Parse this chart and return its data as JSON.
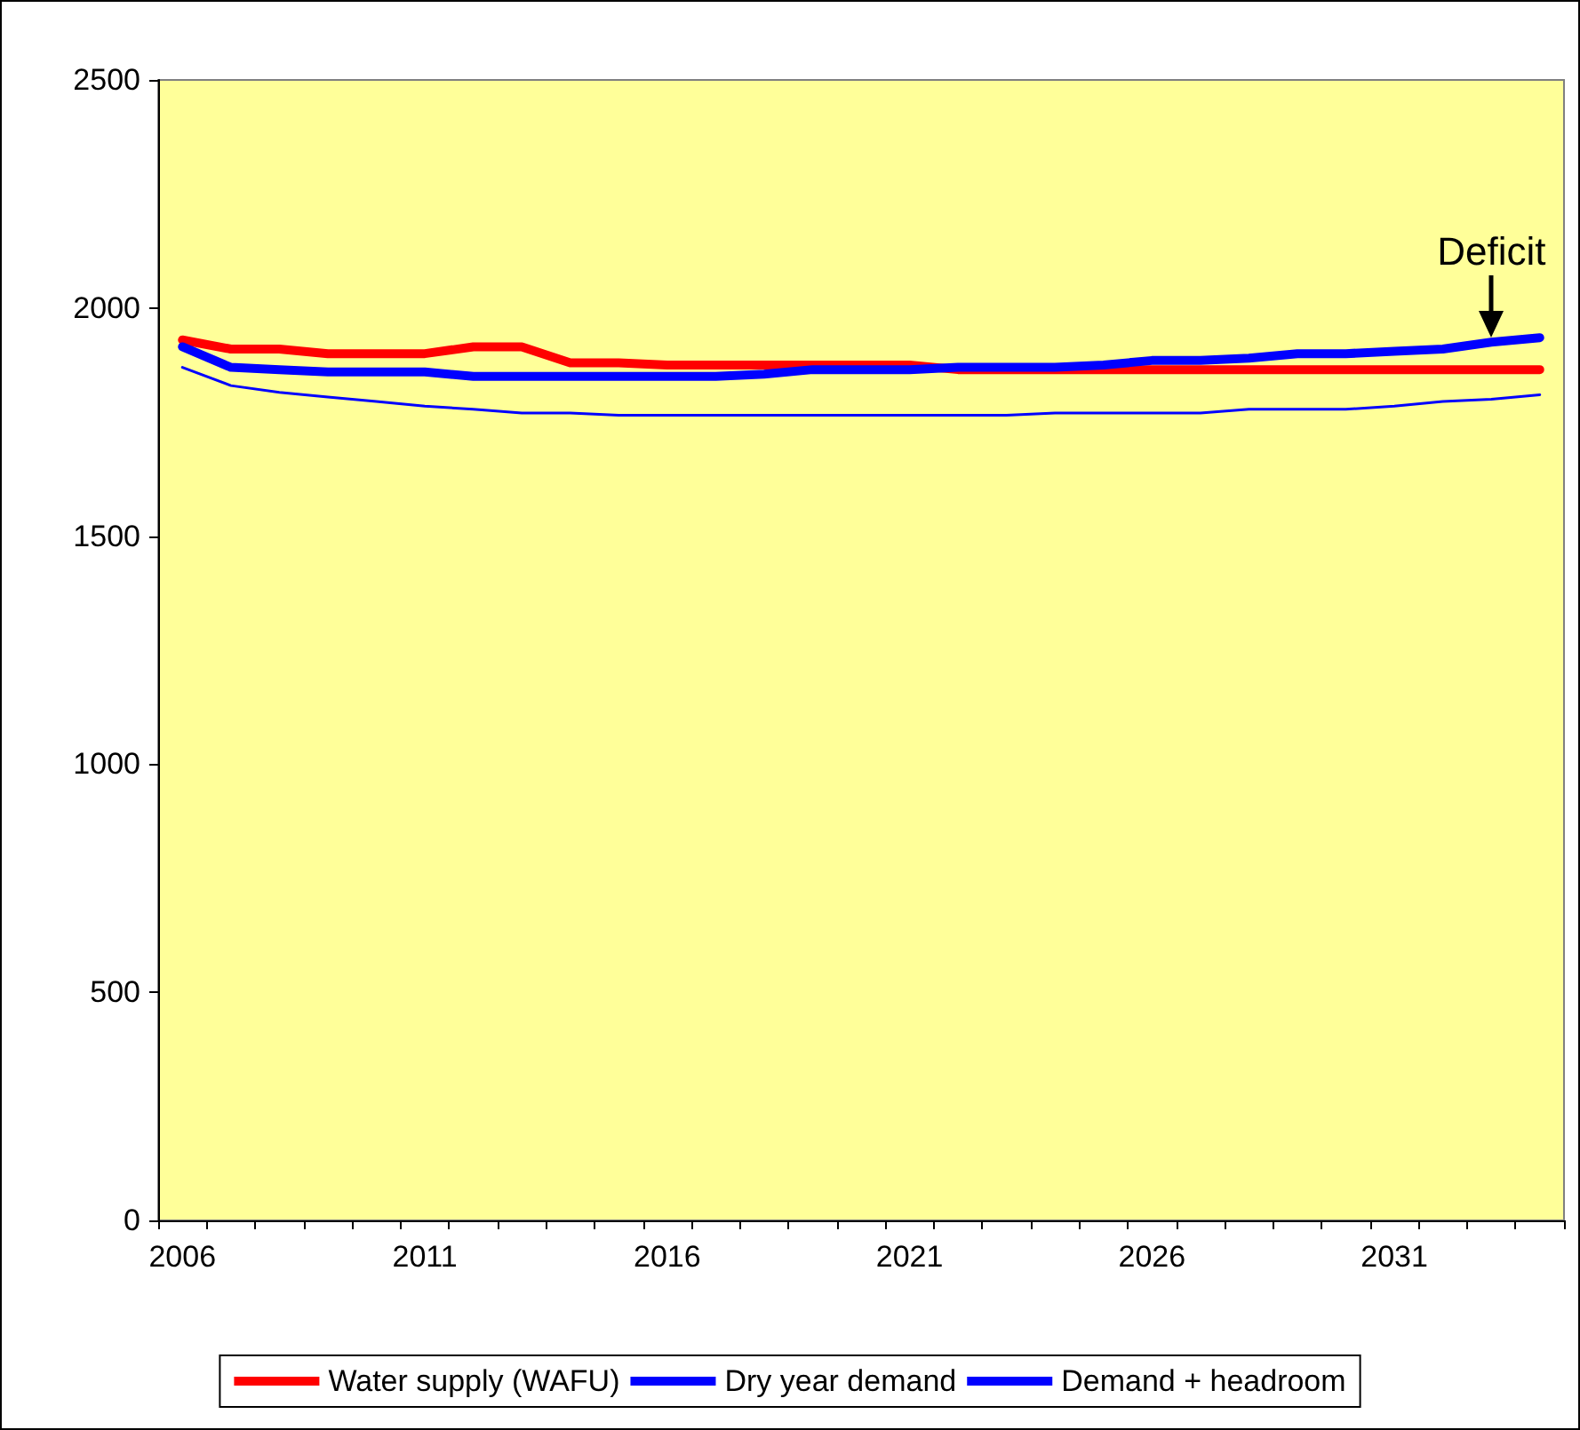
{
  "chart_data": {
    "type": "line",
    "categories": [
      "2006",
      null,
      null,
      null,
      null,
      "2011",
      null,
      null,
      null,
      null,
      "2016",
      null,
      null,
      null,
      null,
      "2021",
      null,
      null,
      null,
      null,
      "2026",
      null,
      null,
      null,
      null,
      "2031",
      null,
      null,
      null
    ],
    "series": [
      {
        "name": "Water supply (WAFU)",
        "color": "#ff0000",
        "values": [
          1930,
          1910,
          1910,
          1900,
          1900,
          1900,
          1915,
          1915,
          1880,
          1880,
          1875,
          1875,
          1875,
          1875,
          1875,
          1875,
          1865,
          1865,
          1865,
          1865,
          1865,
          1865,
          1865,
          1865,
          1865,
          1865,
          1865,
          1865,
          1865
        ]
      },
      {
        "name": "Dry year demand",
        "color": "#0000ff",
        "values": [
          1870,
          1830,
          1815,
          1805,
          1795,
          1785,
          1778,
          1770,
          1770,
          1765,
          1765,
          1765,
          1765,
          1765,
          1765,
          1765,
          1765,
          1765,
          1770,
          1770,
          1770,
          1770,
          1778,
          1778,
          1778,
          1785,
          1795,
          1800,
          1810
        ]
      },
      {
        "name": "Demand + headroom",
        "color": "#0000ff",
        "values": [
          1915,
          1870,
          1865,
          1860,
          1860,
          1860,
          1850,
          1850,
          1850,
          1850,
          1850,
          1850,
          1855,
          1865,
          1865,
          1865,
          1870,
          1870,
          1870,
          1875,
          1885,
          1885,
          1890,
          1900,
          1900,
          1905,
          1910,
          1925,
          1935
        ]
      }
    ],
    "ylim": [
      0,
      2500
    ],
    "yticks": [
      0,
      500,
      1000,
      1500,
      2000,
      2500
    ],
    "grid": false,
    "legend": "bottom",
    "marker": "none",
    "line_style": "solid",
    "annotations": [
      {
        "text": "Deficit",
        "y": 1925
      }
    ]
  }
}
